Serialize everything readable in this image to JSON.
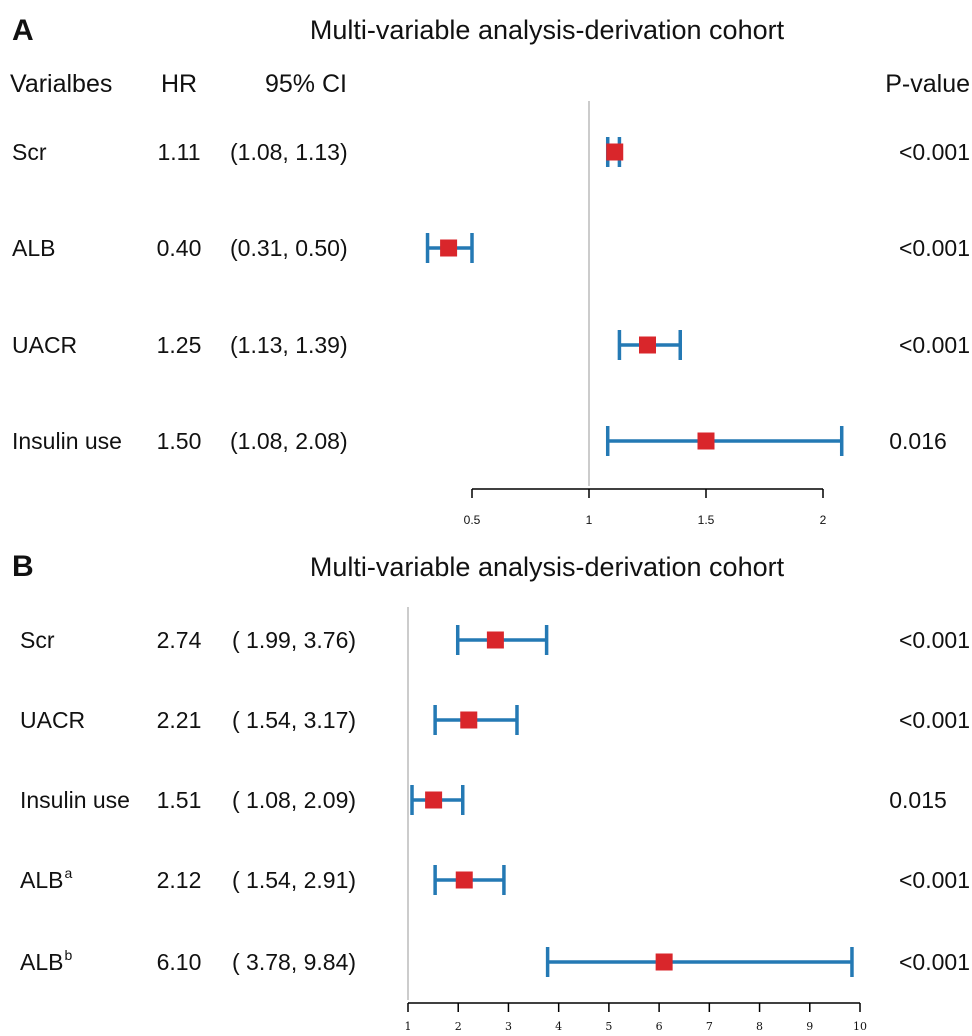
{
  "chart_data": [
    {
      "type": "forest",
      "panel_label": "A",
      "title": "Multi-variable analysis-derivation cohort",
      "headers": {
        "variable": "Varialbes",
        "hr": "HR",
        "ci": "95% CI",
        "p": "P-value"
      },
      "rows": [
        {
          "label": "Scr",
          "sup": "",
          "hr_text": "1.11",
          "ci_text": "(1.08, 1.13)",
          "p_text": "<0.001",
          "hr": 1.11,
          "lo": 1.08,
          "hi": 1.13
        },
        {
          "label": "ALB",
          "sup": "",
          "hr_text": "0.40",
          "ci_text": "(0.31, 0.50)",
          "p_text": "<0.001",
          "hr": 0.4,
          "lo": 0.31,
          "hi": 0.5
        },
        {
          "label": "UACR",
          "sup": "",
          "hr_text": "1.25",
          "ci_text": "(1.13, 1.39)",
          "p_text": "<0.001",
          "hr": 1.25,
          "lo": 1.13,
          "hi": 1.39
        },
        {
          "label": "Insulin use",
          "sup": "",
          "hr_text": "1.50",
          "ci_text": "(1.08, 2.08)",
          "p_text": "0.016",
          "hr": 1.5,
          "lo": 1.08,
          "hi": 2.08
        }
      ],
      "reference_line": 1,
      "xlim": [
        0.5,
        2
      ],
      "ticks": [
        0.5,
        1,
        1.5,
        2
      ],
      "tick_labels": [
        "0.5",
        "1",
        "1.5",
        "2"
      ]
    },
    {
      "type": "forest",
      "panel_label": "B",
      "title": "Multi-variable analysis-derivation cohort",
      "headers": null,
      "rows": [
        {
          "label": "Scr",
          "sup": "",
          "hr_text": "2.74",
          "ci_text": "( 1.99, 3.76)",
          "p_text": "<0.001",
          "hr": 2.74,
          "lo": 1.99,
          "hi": 3.76
        },
        {
          "label": "UACR",
          "sup": "",
          "hr_text": "2.21",
          "ci_text": "( 1.54, 3.17)",
          "p_text": "<0.001",
          "hr": 2.21,
          "lo": 1.54,
          "hi": 3.17
        },
        {
          "label": "Insulin use",
          "sup": "",
          "hr_text": "1.51",
          "ci_text": "( 1.08, 2.09)",
          "p_text": "0.015",
          "hr": 1.51,
          "lo": 1.08,
          "hi": 2.09
        },
        {
          "label": "ALB",
          "sup": "a",
          "hr_text": "2.12",
          "ci_text": "( 1.54, 2.91)",
          "p_text": "<0.001",
          "hr": 2.12,
          "lo": 1.54,
          "hi": 2.91
        },
        {
          "label": "ALB",
          "sup": "b",
          "hr_text": "6.10",
          "ci_text": "( 3.78, 9.84)",
          "p_text": "<0.001",
          "hr": 6.1,
          "lo": 3.78,
          "hi": 9.84
        }
      ],
      "reference_line": 1,
      "xlim": [
        1,
        10
      ],
      "ticks": [
        1,
        2,
        3,
        4,
        5,
        6,
        7,
        8,
        9,
        10
      ],
      "tick_labels": [
        "1",
        "2",
        "3",
        "4",
        "5",
        "6",
        "7",
        "8",
        "9",
        "10"
      ]
    }
  ],
  "colors": {
    "ci_line": "#2479b4",
    "point": "#d9262b",
    "reference": "#cccccc",
    "axis": "#000000",
    "text": "#111111"
  }
}
